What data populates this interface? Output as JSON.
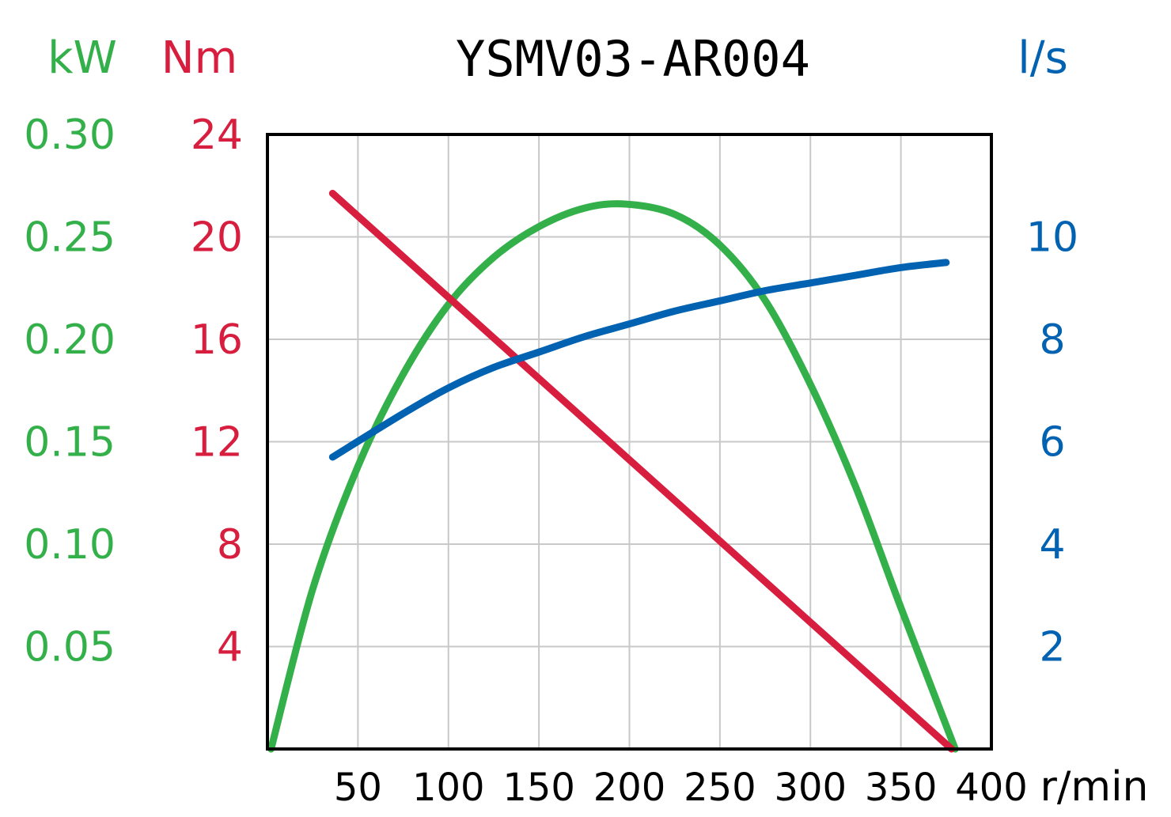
{
  "chart_data": {
    "type": "line",
    "title": "YSMV03-AR004",
    "xlabel": "r/min",
    "x_ticks": [
      "50",
      "100",
      "150",
      "200",
      "250",
      "300",
      "350",
      "400"
    ],
    "xlim": [
      0,
      400
    ],
    "grid": true,
    "axes": {
      "power": {
        "unit": "kW",
        "range": [
          0,
          0.3
        ],
        "ticks": [
          "0.30",
          "0.25",
          "0.20",
          "0.15",
          "0.10",
          "0.05"
        ],
        "color": "#34b04a"
      },
      "torque": {
        "unit": "Nm",
        "range": [
          0,
          24
        ],
        "ticks": [
          "24",
          "20",
          "16",
          "12",
          "8",
          "4"
        ],
        "color": "#d81e3f"
      },
      "flow": {
        "unit": "l/s",
        "range": [
          0,
          12
        ],
        "ticks": [
          "10",
          "8",
          "6",
          "4",
          "2"
        ],
        "color": "#0062b1"
      }
    },
    "series": [
      {
        "name": "Power",
        "axis": "power",
        "color": "#34b04a",
        "x": [
          2,
          25,
          50,
          75,
          100,
          125,
          150,
          175,
          198,
          225,
          250,
          275,
          300,
          325,
          350,
          380
        ],
        "y": [
          0.0,
          0.078,
          0.138,
          0.183,
          0.217,
          0.24,
          0.255,
          0.264,
          0.266,
          0.261,
          0.246,
          0.219,
          0.178,
          0.128,
          0.069,
          0.0
        ]
      },
      {
        "name": "Torque",
        "axis": "torque",
        "color": "#d81e3f",
        "x": [
          36,
          378
        ],
        "y": [
          21.7,
          0.0
        ]
      },
      {
        "name": "Flow",
        "axis": "flow",
        "color": "#0062b1",
        "x": [
          36,
          75,
          100,
          125,
          150,
          175,
          200,
          225,
          250,
          275,
          300,
          325,
          350,
          375
        ],
        "y": [
          5.7,
          6.55,
          7.05,
          7.45,
          7.75,
          8.05,
          8.3,
          8.55,
          8.75,
          8.95,
          9.1,
          9.25,
          9.4,
          9.5
        ]
      }
    ]
  }
}
